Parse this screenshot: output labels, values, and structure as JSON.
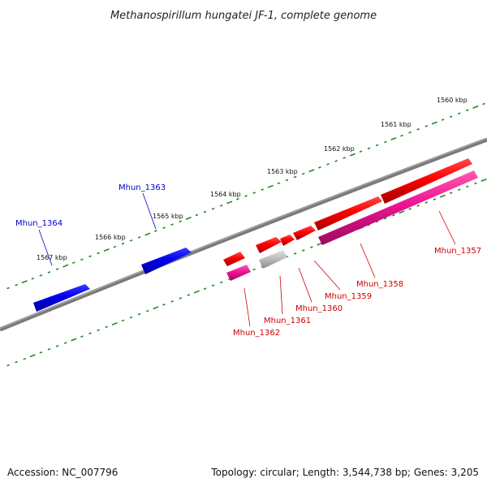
{
  "title": "Methanospirillum hungatei JF-1, complete genome",
  "footer": {
    "accession": "Accession: NC_007796",
    "topology": "Topology: circular; Length: 3,544,738 bp; Genes: 3,205"
  },
  "colors": {
    "backbone": "#808080",
    "ticks": "#228B22",
    "gene_blue": "#0000ee",
    "gene_red": "#ff0000",
    "gene_magenta": "#ee1493",
    "gene_grey": "#bdbdbd",
    "label_blue": "#0000cc",
    "label_red": "#cc0000"
  },
  "scale_labels": [
    "1560 kbp",
    "1561 kbp",
    "1562 kbp",
    "1563 kbp",
    "1564 kbp",
    "1565 kbp",
    "1566 kbp",
    "1567 kbp"
  ],
  "genes": [
    {
      "name": "Mhun_1357",
      "color": "gene_magenta",
      "strand": "-"
    },
    {
      "name": "Mhun_1358",
      "color": "gene_red",
      "strand": "+"
    },
    {
      "name": "Mhun_1359",
      "color": "gene_red",
      "strand": "+"
    },
    {
      "name": "Mhun_1360",
      "color": "gene_red",
      "strand": "+"
    },
    {
      "name": "Mhun_1361",
      "color": "gene_grey",
      "strand": "-"
    },
    {
      "name": "Mhun_1362",
      "color": "gene_magenta",
      "strand": "-"
    },
    {
      "name": "Mhun_1363",
      "color": "gene_blue",
      "strand": "+"
    },
    {
      "name": "Mhun_1364",
      "color": "gene_blue",
      "strand": "+"
    }
  ]
}
